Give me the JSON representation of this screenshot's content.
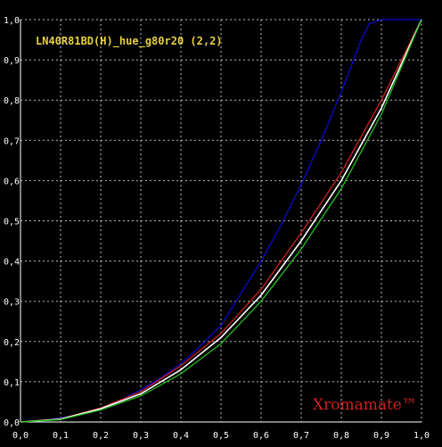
{
  "chart_data": {
    "type": "line",
    "title": "LN40R81BD(H)_hue_g80r20 (2,2)",
    "xlabel": "",
    "ylabel": "",
    "xlim": [
      0,
      1
    ],
    "ylim": [
      0,
      1
    ],
    "grid": true,
    "x_ticks": [
      "0,0",
      "0,1",
      "0,2",
      "0,3",
      "0,4",
      "0,5",
      "0,6",
      "0,7",
      "0,8",
      "0,9",
      "1,0"
    ],
    "y_ticks": [
      "0,0",
      "0,1",
      "0,2",
      "0,3",
      "0,4",
      "0,5",
      "0,6",
      "0,7",
      "0,8",
      "0,9",
      "1,0"
    ],
    "series": [
      {
        "color": "#0a0ad0",
        "x": [
          0,
          0.05,
          0.1,
          0.15,
          0.2,
          0.25,
          0.3,
          0.35,
          0.4,
          0.45,
          0.5,
          0.55,
          0.6,
          0.65,
          0.7,
          0.75,
          0.8,
          0.85,
          0.87,
          0.9,
          0.95,
          1.0
        ],
        "y": [
          0,
          0.003,
          0.01,
          0.02,
          0.035,
          0.055,
          0.08,
          0.11,
          0.145,
          0.19,
          0.24,
          0.32,
          0.4,
          0.49,
          0.59,
          0.7,
          0.82,
          0.95,
          0.99,
          1.0,
          1.0,
          1.0
        ]
      },
      {
        "color": "#cc2020",
        "x": [
          0,
          0.1,
          0.2,
          0.3,
          0.4,
          0.5,
          0.6,
          0.7,
          0.8,
          0.9,
          1.0
        ],
        "y": [
          0,
          0.008,
          0.035,
          0.075,
          0.14,
          0.22,
          0.33,
          0.47,
          0.62,
          0.8,
          1.0
        ]
      },
      {
        "color": "#ffffff",
        "x": [
          0,
          0.1,
          0.2,
          0.3,
          0.4,
          0.5,
          0.6,
          0.7,
          0.8,
          0.9,
          1.0
        ],
        "y": [
          0,
          0.007,
          0.033,
          0.07,
          0.13,
          0.21,
          0.315,
          0.45,
          0.6,
          0.78,
          1.0
        ]
      },
      {
        "color": "#20c020",
        "x": [
          0,
          0.1,
          0.2,
          0.3,
          0.4,
          0.5,
          0.6,
          0.7,
          0.8,
          0.9,
          1.0
        ],
        "y": [
          0,
          0.006,
          0.03,
          0.065,
          0.12,
          0.195,
          0.3,
          0.43,
          0.58,
          0.765,
          1.0
        ]
      }
    ],
    "annotations": [
      {
        "text": "Xromamate™",
        "color": "#cc2020",
        "position": "bottom-right"
      }
    ],
    "colors": {
      "background": "#000000",
      "axis": "#ffffff",
      "grid": "#bbbbbb",
      "tick_text": "#ffffff",
      "title": "#e8d040"
    }
  }
}
